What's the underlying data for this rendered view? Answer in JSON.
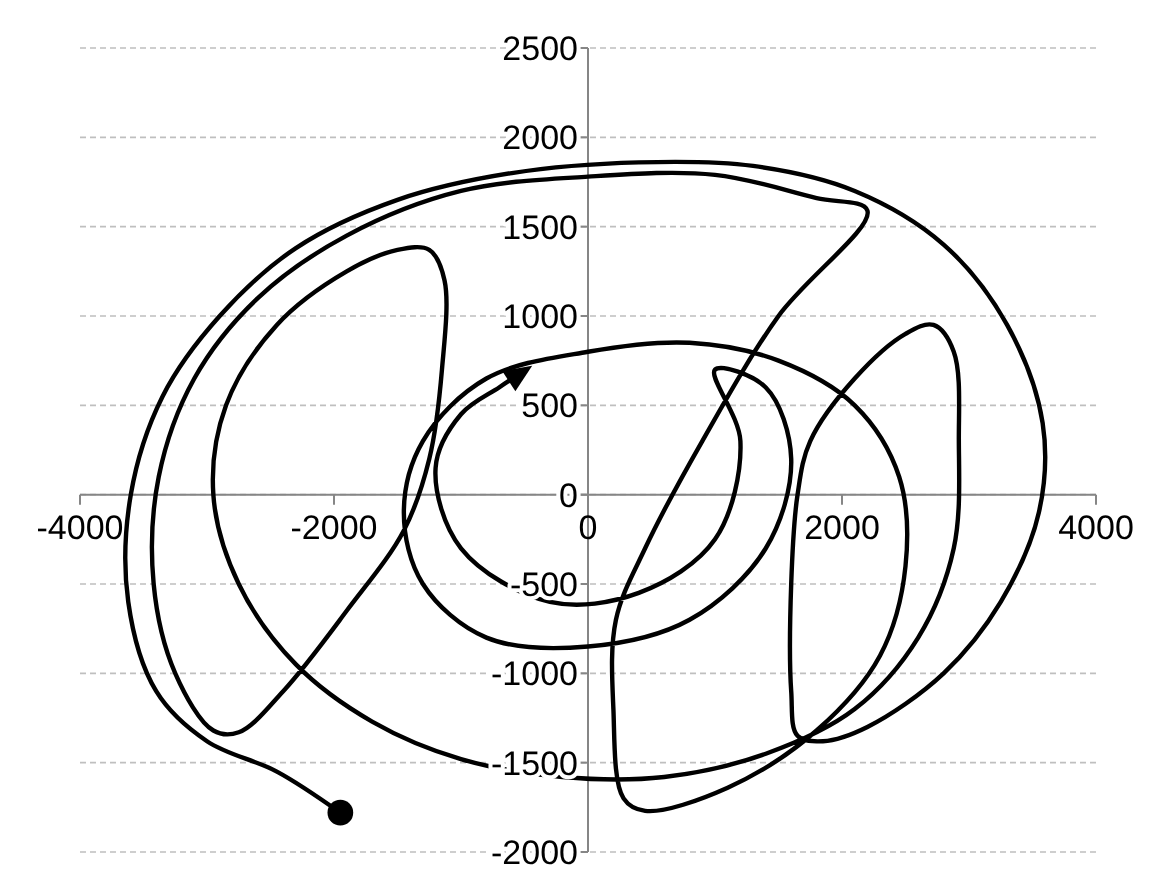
{
  "chart_data": {
    "type": "line",
    "xlim": [
      -4000,
      4000
    ],
    "ylim": [
      -2000,
      2500
    ],
    "xticks": [
      -4000,
      -2000,
      0,
      2000,
      4000
    ],
    "yticks": [
      -2000,
      -1500,
      -1000,
      -500,
      0,
      500,
      1000,
      1500,
      2000,
      2500
    ],
    "grid": "y",
    "series": [
      {
        "color": "#000000",
        "marker": "none",
        "line_style": "solid",
        "x": [
          -1950,
          -2450,
          -3000,
          -3400,
          -3620,
          -3600,
          -3350,
          -2900,
          -2300,
          -1500,
          -600,
          400,
          1300,
          2100,
          2800,
          3300,
          3580,
          3550,
          3250,
          2800,
          2200,
          1850,
          1650,
          1600,
          1600,
          1650,
          1750,
          2100,
          2500,
          2720,
          2880,
          2920,
          2880,
          2600,
          2100,
          1400,
          600,
          -200,
          -1000,
          -1700,
          -2300,
          -2750,
          -2950,
          -2850,
          -2450,
          -1900,
          -1500,
          -1250,
          -1130,
          -1150,
          -1250,
          -1450,
          -1900,
          -2400,
          -2750,
          -2950,
          -3250,
          -3420,
          -3380,
          -3100,
          -2600,
          -1900,
          -1000,
          0,
          1000,
          1800,
          2200,
          1500,
          900,
          450,
          220,
          200,
          280,
          450,
          1100,
          1800,
          2300,
          2500,
          2450,
          2100,
          1500,
          800,
          0,
          -800,
          -1300,
          -1450,
          -1300,
          -800,
          0,
          800,
          1400,
          1600,
          1400,
          1000,
          1200,
          1000,
          400,
          -300,
          -1000,
          -1200,
          -1000,
          -700,
          -550
        ],
        "values": [
          -1780,
          -1550,
          -1380,
          -1100,
          -600,
          0,
          550,
          1000,
          1380,
          1650,
          1800,
          1860,
          1840,
          1700,
          1400,
          950,
          400,
          -100,
          -600,
          -1000,
          -1300,
          -1380,
          -1350,
          -1100,
          -500,
          0,
          300,
          650,
          900,
          950,
          800,
          300,
          -300,
          -800,
          -1200,
          -1450,
          -1580,
          -1580,
          -1480,
          -1270,
          -950,
          -500,
          0,
          500,
          950,
          1250,
          1370,
          1370,
          1200,
          700,
          200,
          -200,
          -650,
          -1100,
          -1330,
          -1320,
          -1000,
          -500,
          100,
          650,
          1100,
          1450,
          1700,
          1780,
          1790,
          1660,
          1590,
          1000,
          300,
          -300,
          -700,
          -1200,
          -1700,
          -1770,
          -1640,
          -1320,
          -900,
          -400,
          100,
          500,
          750,
          850,
          800,
          650,
          300,
          -100,
          -500,
          -800,
          -850,
          -700,
          -300,
          200,
          600,
          700,
          300,
          -250,
          -550,
          -600,
          -300,
          150,
          450,
          600,
          670
        ]
      },
      {
        "type": "scatter",
        "color": "#000000",
        "marker": "circle",
        "x": [
          -1950
        ],
        "values": [
          -1780
        ]
      }
    ]
  }
}
